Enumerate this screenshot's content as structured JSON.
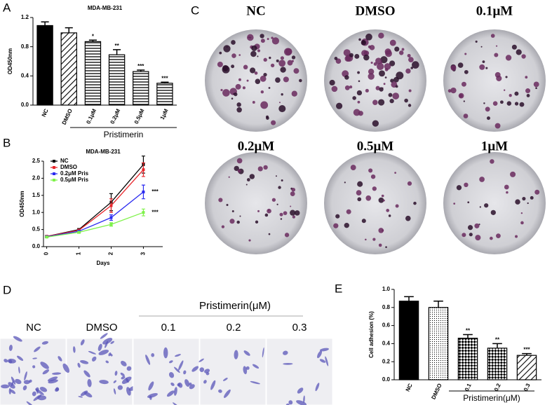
{
  "panel_labels": [
    "A",
    "B",
    "C",
    "D",
    "E"
  ],
  "chart_data": [
    {
      "type": "bar",
      "title": "MDA-MB-231",
      "y_label": "OD450nm",
      "categories": [
        "NC",
        "DMSO",
        "0.1μM",
        "0.2μM",
        "0.5μM",
        "1μM"
      ],
      "values": [
        1.09,
        0.99,
        0.87,
        0.69,
        0.46,
        0.3
      ],
      "errors": [
        0.05,
        0.07,
        0.02,
        0.07,
        0.02,
        0.015
      ],
      "patterns": [
        "solid",
        "diagonal",
        "horizontal",
        "horizontal",
        "horizontal",
        "horizontal"
      ],
      "color": "#000000",
      "significance_labels": [
        null,
        null,
        "*",
        "**",
        "***",
        "***"
      ],
      "group_label": "Pristimerin",
      "ylim": [
        0,
        1.2
      ],
      "yticks": [
        {
          "value": 0,
          "label": "0.0"
        },
        0.4,
        0.8,
        1.2
      ]
    },
    {
      "type": "line",
      "title": "MDA-MB-231",
      "x_label": "Days",
      "y_label": "OD450nm",
      "x": [
        0,
        1,
        2,
        3
      ],
      "xlim": [
        -0.1,
        3.6
      ],
      "xticks": [
        0,
        1,
        2,
        3
      ],
      "ylim": [
        0,
        2.5
      ],
      "yticks": [
        {
          "value": 0,
          "label": "0.0"
        },
        0.5,
        {
          "value": 1,
          "label": "1.0"
        },
        1.5,
        {
          "value": 2,
          "label": "2.0"
        },
        2.5
      ],
      "legend": "top-left",
      "series": [
        {
          "name": "NC",
          "color": "#000000",
          "values": [
            0.3,
            0.5,
            1.3,
            2.4
          ],
          "errors": [
            0.02,
            0.03,
            0.25,
            0.25
          ]
        },
        {
          "name": "DMSO",
          "color": "#e8252a",
          "values": [
            0.3,
            0.48,
            1.2,
            2.25
          ],
          "errors": [
            0.02,
            0.03,
            0.2,
            0.2
          ]
        },
        {
          "name": "0.2μM Pris",
          "color": "#2b2bf0",
          "values": [
            0.29,
            0.45,
            0.85,
            1.6
          ],
          "errors": [
            0.02,
            0.03,
            0.08,
            0.2
          ],
          "annotation": "***"
        },
        {
          "name": "0.5μM Pris",
          "color": "#7ff24a",
          "values": [
            0.28,
            0.42,
            0.65,
            1.0
          ],
          "errors": [
            0.02,
            0.03,
            0.05,
            0.1
          ],
          "annotation": "***"
        }
      ]
    },
    {
      "type": "bar",
      "y_label": "Cell adhesion (%)",
      "categories": [
        "NC",
        "DMSO",
        "0.1",
        "0.2",
        "0.3"
      ],
      "values": [
        0.87,
        0.8,
        0.46,
        0.35,
        0.27
      ],
      "errors": [
        0.05,
        0.07,
        0.04,
        0.05,
        0.02
      ],
      "patterns": [
        "solid",
        "dots",
        "checker",
        "checker",
        "diagonal"
      ],
      "color": "#000000",
      "significance_labels": [
        null,
        null,
        "**",
        "**",
        "***"
      ],
      "group_label": "Pristimerin(μM)",
      "ylim": [
        0,
        1
      ],
      "yticks": [
        {
          "value": 0,
          "label": "0.0"
        },
        0.2,
        0.4,
        0.6,
        0.8,
        {
          "value": 1,
          "label": "1.0"
        }
      ]
    }
  ],
  "colony_panel": {
    "labels": [
      "NC",
      "DMSO",
      "0.1μM",
      "0.2μM",
      "0.5μM",
      "1μM"
    ]
  },
  "transwell_panel": {
    "header": "Pristimerin(μM)",
    "labels": [
      "NC",
      "DMSO",
      "0.1",
      "0.2",
      "0.3"
    ]
  }
}
